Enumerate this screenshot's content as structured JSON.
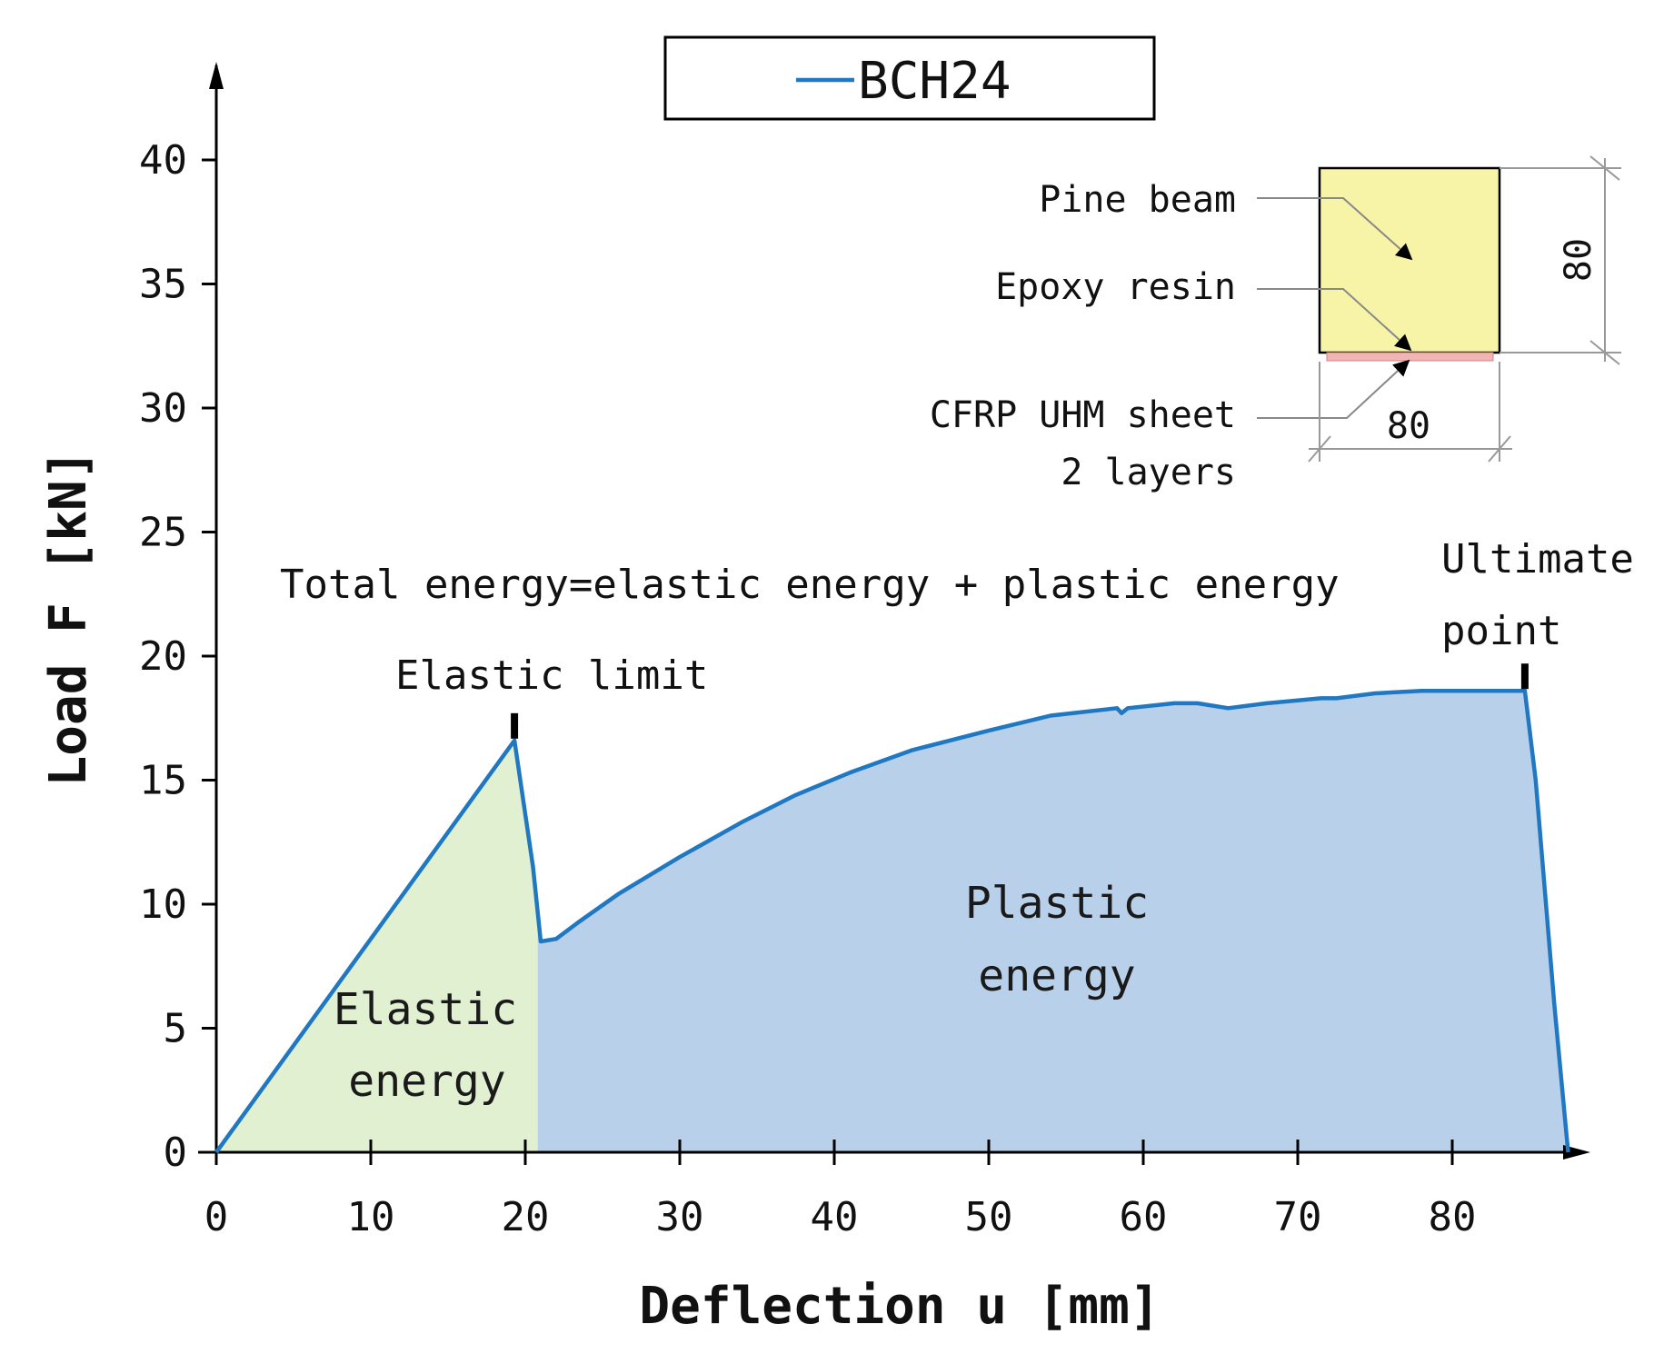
{
  "chart_data": {
    "type": "area",
    "xlabel": "Deflection u [mm]",
    "ylabel": "Load F [kN]",
    "xlim": [
      0,
      88
    ],
    "ylim": [
      0,
      40
    ],
    "x_ticks": [
      "0",
      "10",
      "20",
      "30",
      "40",
      "50",
      "60",
      "70",
      "80"
    ],
    "y_ticks": [
      "0",
      "5",
      "10",
      "15",
      "20",
      "25",
      "30",
      "35",
      "40"
    ],
    "grid": false,
    "legend": {
      "placement": "top-center",
      "entries": [
        "BCH24"
      ]
    },
    "series": [
      {
        "name": "BCH24",
        "color": "#1f78c1",
        "x": [
          0,
          19.3,
          20.5,
          21.0,
          22.0,
          23.5,
          26,
          30,
          34,
          37.5,
          41,
          45,
          50,
          54,
          58.3,
          58.6,
          59,
          62,
          63.5,
          65.5,
          68,
          71.5,
          72.5,
          75,
          78,
          80,
          84.7,
          85.4,
          86.6,
          87.5
        ],
        "y": [
          0,
          16.6,
          11.5,
          8.5,
          8.6,
          9.3,
          10.4,
          11.9,
          13.3,
          14.4,
          15.3,
          16.2,
          17.0,
          17.6,
          17.9,
          17.7,
          17.9,
          18.1,
          18.1,
          17.9,
          18.1,
          18.3,
          18.3,
          18.5,
          18.6,
          18.6,
          18.6,
          15.0,
          6.0,
          0
        ]
      }
    ],
    "regions": {
      "elastic_energy": {
        "label_line1": "Elastic",
        "label_line2": "energy",
        "color": "#e0f0d0",
        "x_range": [
          0,
          20.8
        ]
      },
      "plastic_energy": {
        "label_line1": "Plastic",
        "label_line2": "energy",
        "color": "#b8d0ea",
        "x_range": [
          20.8,
          87.5
        ]
      }
    },
    "annotations": {
      "total_energy": "Total energy=elastic energy + plastic energy",
      "elastic_limit": {
        "label": "Elastic limit",
        "x": 19.3,
        "y": 16.6
      },
      "ultimate_point": {
        "label_line1": "Ultimate",
        "label_line2": "point",
        "x": 84.7,
        "y": 18.6
      }
    },
    "inset": {
      "pine_beam": "Pine beam",
      "epoxy_resin": "Epoxy resin",
      "cfrp_line1": "CFRP UHM sheet",
      "cfrp_line2": "2 layers",
      "dim_height": "80",
      "dim_width": "80",
      "beam_color": "#f7f4a8",
      "sheet_color": "#f2b5b5"
    }
  }
}
